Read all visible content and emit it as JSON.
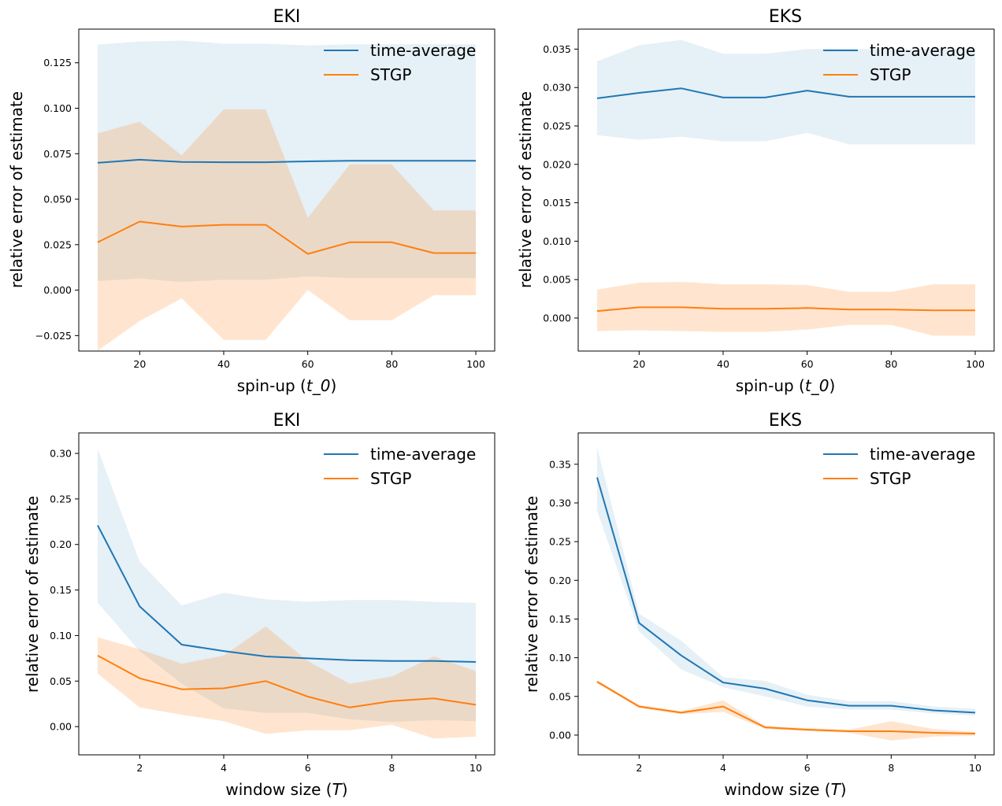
{
  "colors": {
    "time_average_line": "#1f77b4",
    "time_average_band": "#1f77b4",
    "stgp_line": "#ff7f0e",
    "stgp_band": "#ff7f0e"
  },
  "chart_data": [
    {
      "type": "line",
      "title": "EKI",
      "xlabel": "spin-up (t_0)",
      "xlabel_prefix": "spin-up (",
      "xlabel_var": "t_0",
      "xlabel_suffix": ")",
      "ylabel": "relative error of estimate",
      "xlim": [
        5.5,
        104.5
      ],
      "ylim": [
        -0.0335,
        0.1435
      ],
      "xticks": [
        20,
        40,
        60,
        80,
        100
      ],
      "xtick_labels": [
        "20",
        "40",
        "60",
        "80",
        "100"
      ],
      "yticks": [
        -0.025,
        0.0,
        0.025,
        0.05,
        0.075,
        0.1,
        0.125
      ],
      "ytick_labels": [
        "−0.025",
        "0.000",
        "0.025",
        "0.050",
        "0.075",
        "0.100",
        "0.125"
      ],
      "x": [
        10,
        20,
        30,
        40,
        50,
        60,
        70,
        80,
        90,
        100
      ],
      "legend": [
        "time-average",
        "STGP"
      ],
      "series": [
        {
          "name": "time-average",
          "values": [
            0.07,
            0.0717,
            0.0705,
            0.0703,
            0.0703,
            0.0708,
            0.0711,
            0.0711,
            0.0711,
            0.0711
          ],
          "lower": [
            0.005,
            0.0063,
            0.0045,
            0.0057,
            0.0057,
            0.0075,
            0.0066,
            0.0066,
            0.0066,
            0.0066
          ],
          "upper": [
            0.135,
            0.1367,
            0.1372,
            0.1355,
            0.1355,
            0.1345,
            0.1352,
            0.1352,
            0.1352,
            0.1352
          ]
        },
        {
          "name": "STGP",
          "values": [
            0.0263,
            0.0377,
            0.0349,
            0.0359,
            0.0359,
            0.0199,
            0.0263,
            0.0263,
            0.0204,
            0.0204
          ],
          "lower": [
            -0.0333,
            -0.017,
            -0.0045,
            -0.0274,
            -0.0274,
            0.0001,
            -0.0166,
            -0.0166,
            -0.0028,
            -0.0028
          ],
          "upper": [
            0.0862,
            0.0926,
            0.0741,
            0.0994,
            0.0994,
            0.0397,
            0.0691,
            0.0691,
            0.0438,
            0.0438
          ]
        }
      ]
    },
    {
      "type": "line",
      "title": "EKS",
      "xlabel": "spin-up (t_0)",
      "xlabel_prefix": "spin-up (",
      "xlabel_var": "t_0",
      "xlabel_suffix": ")",
      "ylabel": "relative error of estimate",
      "xlim": [
        5.5,
        104.5
      ],
      "ylim": [
        -0.0043,
        0.0376
      ],
      "xticks": [
        20,
        40,
        60,
        80,
        100
      ],
      "xtick_labels": [
        "20",
        "40",
        "60",
        "80",
        "100"
      ],
      "yticks": [
        0.0,
        0.005,
        0.01,
        0.015,
        0.02,
        0.025,
        0.03,
        0.035
      ],
      "ytick_labels": [
        "0.000",
        "0.005",
        "0.010",
        "0.015",
        "0.020",
        "0.025",
        "0.030",
        "0.035"
      ],
      "x": [
        10,
        20,
        30,
        40,
        50,
        60,
        70,
        80,
        90,
        100
      ],
      "legend": [
        "time-average",
        "STGP"
      ],
      "series": [
        {
          "name": "time-average",
          "values": [
            0.0286,
            0.0293,
            0.0299,
            0.0287,
            0.0287,
            0.0296,
            0.0288,
            0.0288,
            0.0288,
            0.0288
          ],
          "lower": [
            0.0238,
            0.0232,
            0.0236,
            0.023,
            0.023,
            0.0241,
            0.0226,
            0.0226,
            0.0226,
            0.0226
          ],
          "upper": [
            0.0334,
            0.0355,
            0.0362,
            0.0344,
            0.0344,
            0.035,
            0.035,
            0.035,
            0.035,
            0.035
          ]
        },
        {
          "name": "STGP",
          "values": [
            0.0009,
            0.0014,
            0.0014,
            0.0012,
            0.0012,
            0.0013,
            0.0011,
            0.0011,
            0.001,
            0.001
          ],
          "lower": [
            -0.0017,
            -0.0016,
            -0.0017,
            -0.0018,
            -0.0018,
            -0.0015,
            -0.0009,
            -0.0009,
            -0.0023,
            -0.0023
          ],
          "upper": [
            0.0037,
            0.0046,
            0.0047,
            0.0044,
            0.0044,
            0.0043,
            0.0034,
            0.0034,
            0.0044,
            0.0044
          ]
        }
      ]
    },
    {
      "type": "line",
      "title": "EKI",
      "xlabel": "window size (T)",
      "xlabel_prefix": "window size (",
      "xlabel_var": "T",
      "xlabel_suffix": ")",
      "ylabel": "relative error of estimate",
      "xlim": [
        0.55,
        10.45
      ],
      "ylim": [
        -0.031,
        0.3225
      ],
      "xticks": [
        2,
        4,
        6,
        8,
        10
      ],
      "xtick_labels": [
        "2",
        "4",
        "6",
        "8",
        "10"
      ],
      "yticks": [
        0.0,
        0.05,
        0.1,
        0.15,
        0.2,
        0.25,
        0.3
      ],
      "ytick_labels": [
        "0.00",
        "0.05",
        "0.10",
        "0.15",
        "0.20",
        "0.25",
        "0.30"
      ],
      "x": [
        1,
        2,
        3,
        4,
        5,
        6,
        7,
        8,
        9,
        10
      ],
      "legend": [
        "time-average",
        "STGP"
      ],
      "series": [
        {
          "name": "time-average",
          "values": [
            0.221,
            0.132,
            0.09,
            0.083,
            0.077,
            0.075,
            0.073,
            0.072,
            0.072,
            0.071
          ],
          "lower": [
            0.136,
            0.083,
            0.047,
            0.02,
            0.015,
            0.015,
            0.008,
            0.005,
            0.007,
            0.006
          ],
          "upper": [
            0.305,
            0.181,
            0.133,
            0.147,
            0.14,
            0.137,
            0.139,
            0.139,
            0.137,
            0.136
          ]
        },
        {
          "name": "STGP",
          "values": [
            0.078,
            0.053,
            0.041,
            0.042,
            0.05,
            0.033,
            0.021,
            0.028,
            0.031,
            0.024
          ],
          "lower": [
            0.058,
            0.021,
            0.013,
            0.006,
            -0.008,
            -0.004,
            -0.004,
            0.002,
            -0.013,
            -0.011
          ],
          "upper": [
            0.098,
            0.085,
            0.069,
            0.078,
            0.11,
            0.072,
            0.047,
            0.055,
            0.077,
            0.061
          ]
        }
      ]
    },
    {
      "type": "line",
      "title": "EKS",
      "xlabel": "window size (T)",
      "xlabel_prefix": "window size (",
      "xlabel_var": "T",
      "xlabel_suffix": ")",
      "ylabel": "relative error of estimate",
      "xlim": [
        0.55,
        10.45
      ],
      "ylim": [
        -0.0255,
        0.3905
      ],
      "xticks": [
        2,
        4,
        6,
        8,
        10
      ],
      "xtick_labels": [
        "2",
        "4",
        "6",
        "8",
        "10"
      ],
      "yticks": [
        0.0,
        0.05,
        0.1,
        0.15,
        0.2,
        0.25,
        0.3,
        0.35
      ],
      "ytick_labels": [
        "0.00",
        "0.05",
        "0.10",
        "0.15",
        "0.20",
        "0.25",
        "0.30",
        "0.35"
      ],
      "x": [
        1,
        2,
        3,
        4,
        5,
        6,
        7,
        8,
        9,
        10
      ],
      "legend": [
        "time-average",
        "STGP"
      ],
      "series": [
        {
          "name": "time-average",
          "values": [
            0.333,
            0.145,
            0.103,
            0.068,
            0.06,
            0.045,
            0.038,
            0.038,
            0.032,
            0.029
          ],
          "lower": [
            0.29,
            0.134,
            0.085,
            0.062,
            0.05,
            0.037,
            0.033,
            0.033,
            0.028,
            0.025
          ],
          "upper": [
            0.372,
            0.157,
            0.122,
            0.075,
            0.07,
            0.052,
            0.044,
            0.044,
            0.037,
            0.034
          ]
        },
        {
          "name": "STGP",
          "values": [
            0.069,
            0.037,
            0.029,
            0.037,
            0.01,
            0.007,
            0.005,
            0.005,
            0.003,
            0.002
          ],
          "lower": [
            0.067,
            0.035,
            0.027,
            0.03,
            0.008,
            0.005,
            0.003,
            -0.007,
            -0.002,
            -0.001
          ],
          "upper": [
            0.071,
            0.039,
            0.031,
            0.045,
            0.012,
            0.009,
            0.007,
            0.018,
            0.008,
            0.004
          ]
        }
      ]
    }
  ]
}
